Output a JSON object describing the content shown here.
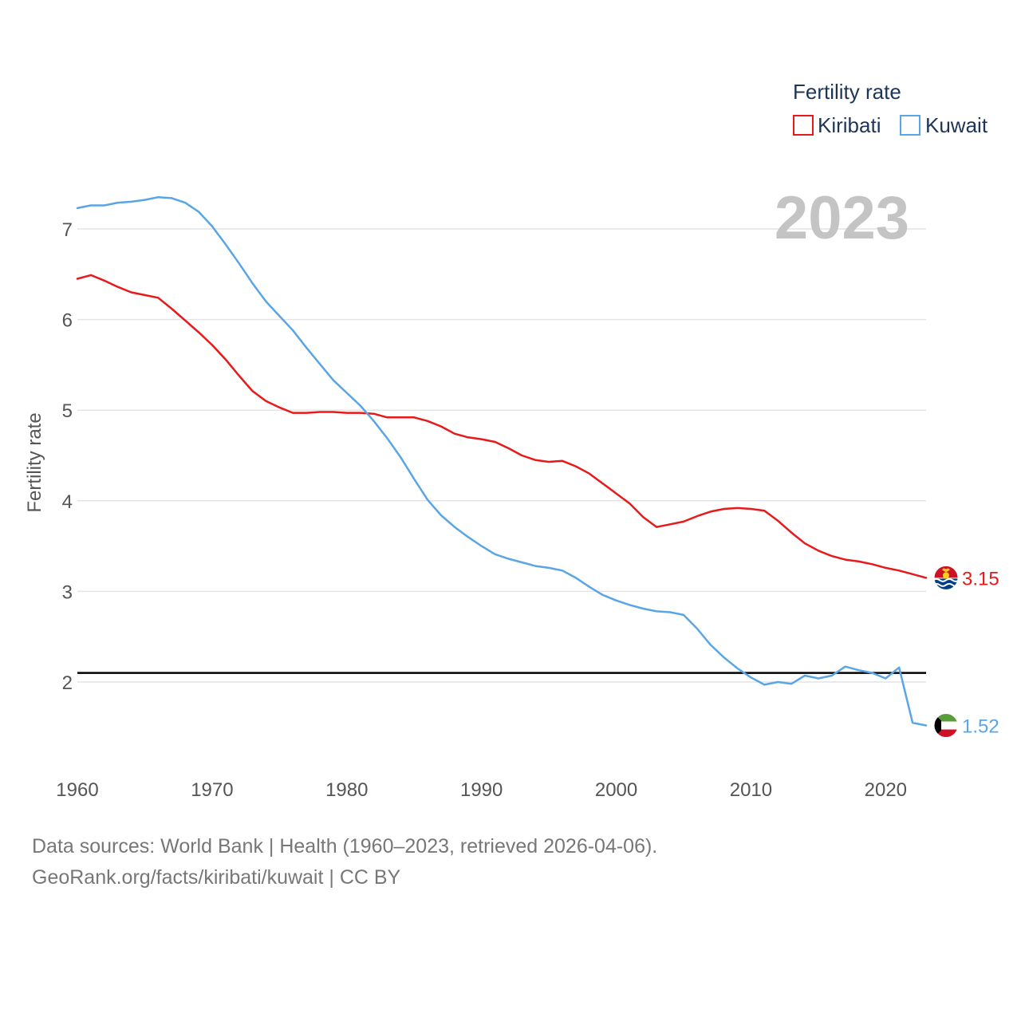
{
  "chart_data": {
    "type": "line",
    "ylabel": "Fertility rate",
    "xlabel": "",
    "xlim": [
      1960,
      2023
    ],
    "ylim": [
      1.2,
      7.6
    ],
    "x_ticks": [
      1960,
      1970,
      1980,
      1990,
      2000,
      2010,
      2020
    ],
    "y_ticks": [
      2,
      3,
      4,
      5,
      6,
      7
    ],
    "year_label": "2023",
    "legend": {
      "title": "Fertility rate",
      "placement": "top-right"
    },
    "reference_line": {
      "value": 2.1,
      "color": "#000000"
    },
    "series": [
      {
        "name": "Kiribati",
        "color": "#e8191b",
        "end_label": "3.15",
        "flag": "kiribati-flag",
        "x": [
          1960,
          1961,
          1962,
          1963,
          1964,
          1965,
          1966,
          1967,
          1968,
          1969,
          1970,
          1971,
          1972,
          1973,
          1974,
          1975,
          1976,
          1977,
          1978,
          1979,
          1980,
          1981,
          1982,
          1983,
          1984,
          1985,
          1986,
          1987,
          1988,
          1989,
          1990,
          1991,
          1992,
          1993,
          1994,
          1995,
          1996,
          1997,
          1998,
          1999,
          2000,
          2001,
          2002,
          2003,
          2004,
          2005,
          2006,
          2007,
          2008,
          2009,
          2010,
          2011,
          2012,
          2013,
          2014,
          2015,
          2016,
          2017,
          2018,
          2019,
          2020,
          2021,
          2022,
          2023
        ],
        "values": [
          6.45,
          6.49,
          6.43,
          6.36,
          6.3,
          6.27,
          6.24,
          6.12,
          5.99,
          5.86,
          5.72,
          5.56,
          5.38,
          5.21,
          5.1,
          5.03,
          4.97,
          4.97,
          4.98,
          4.98,
          4.97,
          4.97,
          4.96,
          4.92,
          4.92,
          4.92,
          4.88,
          4.82,
          4.74,
          4.7,
          4.68,
          4.65,
          4.58,
          4.5,
          4.45,
          4.43,
          4.44,
          4.38,
          4.3,
          4.19,
          4.08,
          3.97,
          3.82,
          3.71,
          3.74,
          3.77,
          3.83,
          3.88,
          3.91,
          3.92,
          3.91,
          3.89,
          3.78,
          3.65,
          3.53,
          3.45,
          3.39,
          3.35,
          3.33,
          3.3,
          3.26,
          3.23,
          3.19,
          3.15
        ]
      },
      {
        "name": "Kuwait",
        "color": "#5aa5e6",
        "end_label": "1.52",
        "flag": "kuwait-flag",
        "x": [
          1960,
          1961,
          1962,
          1963,
          1964,
          1965,
          1966,
          1967,
          1968,
          1969,
          1970,
          1971,
          1972,
          1973,
          1974,
          1975,
          1976,
          1977,
          1978,
          1979,
          1980,
          1981,
          1982,
          1983,
          1984,
          1985,
          1986,
          1987,
          1988,
          1989,
          1990,
          1991,
          1992,
          1993,
          1994,
          1995,
          1996,
          1997,
          1998,
          1999,
          2000,
          2001,
          2002,
          2003,
          2004,
          2005,
          2006,
          2007,
          2008,
          2009,
          2010,
          2011,
          2012,
          2013,
          2014,
          2015,
          2016,
          2017,
          2018,
          2019,
          2020,
          2021,
          2022,
          2023
        ],
        "values": [
          7.23,
          7.26,
          7.26,
          7.29,
          7.3,
          7.32,
          7.35,
          7.34,
          7.29,
          7.19,
          7.03,
          6.83,
          6.62,
          6.4,
          6.2,
          6.04,
          5.88,
          5.69,
          5.51,
          5.33,
          5.19,
          5.05,
          4.88,
          4.69,
          4.48,
          4.24,
          4.01,
          3.84,
          3.71,
          3.6,
          3.5,
          3.41,
          3.36,
          3.32,
          3.28,
          3.26,
          3.23,
          3.15,
          3.05,
          2.96,
          2.9,
          2.85,
          2.81,
          2.78,
          2.77,
          2.74,
          2.59,
          2.41,
          2.27,
          2.15,
          2.05,
          1.97,
          2.0,
          1.98,
          2.07,
          2.04,
          2.07,
          2.17,
          2.13,
          2.1,
          2.04,
          2.16,
          1.55,
          1.52
        ]
      }
    ]
  },
  "footer": {
    "line1": "Data sources: World Bank | Health (1960–2023, retrieved 2026-04-06).",
    "line2": "GeoRank.org/facts/kiribati/kuwait | CC BY"
  }
}
